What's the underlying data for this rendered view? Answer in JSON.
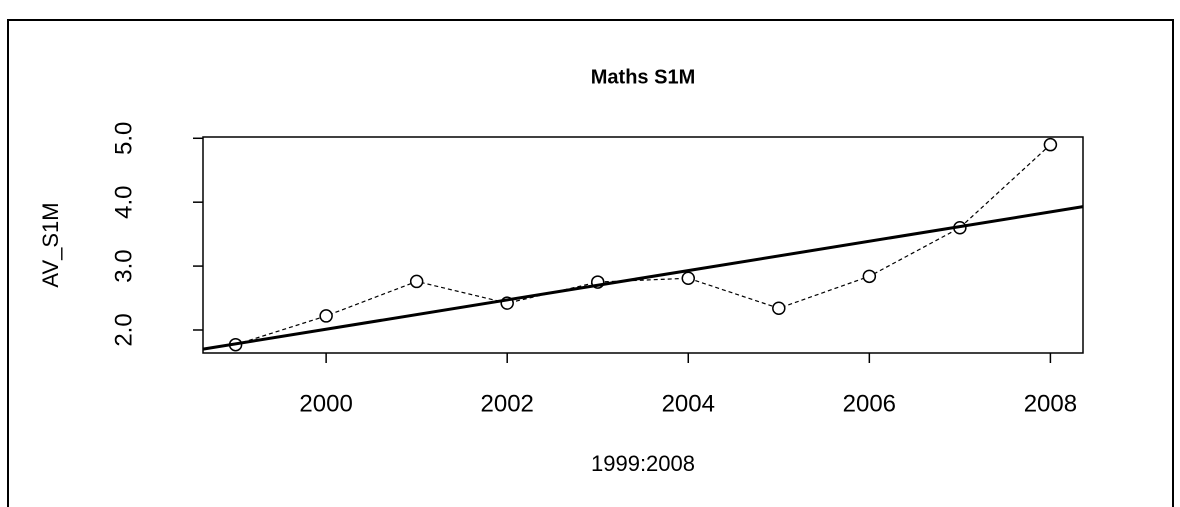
{
  "chart_data": {
    "type": "line",
    "title": "Maths S1M",
    "xlabel": "1999:2008",
    "ylabel": "AV_S1M",
    "x": [
      1999,
      2000,
      2001,
      2002,
      2003,
      2004,
      2005,
      2006,
      2007,
      2008
    ],
    "values": [
      1.77,
      2.22,
      2.76,
      2.42,
      2.75,
      2.81,
      2.34,
      2.84,
      3.6,
      4.9
    ],
    "color": "#000000",
    "fit_line": {
      "x": [
        1998.64,
        2008.36
      ],
      "values": [
        1.7,
        3.93
      ]
    },
    "xlim": [
      1998.64,
      2008.36
    ],
    "xticks": [
      2000,
      2002,
      2004,
      2006,
      2008
    ],
    "ylim": [
      1.64,
      5.02
    ],
    "yticks": [
      {
        "value": 2,
        "label": "2.0"
      },
      {
        "value": 3,
        "label": "3.0"
      },
      {
        "value": 4,
        "label": "4.0"
      },
      {
        "value": 5,
        "label": "5.0"
      }
    ]
  }
}
